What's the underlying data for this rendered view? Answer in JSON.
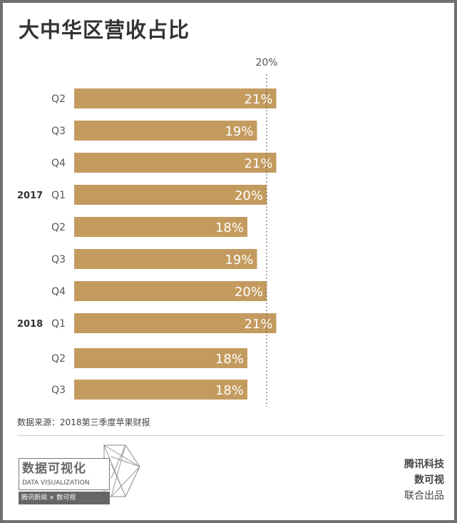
{
  "title": "大中华区营收占比",
  "source": "数据来源：2018第三季度苹果财报",
  "logo": {
    "cn": "数据可视化",
    "en": "DATA VISUALIZATION",
    "bar": "腾讯新闻 × 数可视"
  },
  "credits": {
    "line1": "腾讯科技",
    "line2": "数可视",
    "line3": "联合出品"
  },
  "watermark": "腾讯科技",
  "colors": {
    "bar": "#c49b5f",
    "text": "#333333"
  },
  "chart_data": {
    "type": "bar",
    "orientation": "horizontal",
    "title": "大中华区营收占比",
    "categories": [
      "Q2",
      "Q3",
      "Q4",
      "Q1",
      "Q2",
      "Q3",
      "Q4",
      "Q1",
      "Q2",
      "Q3"
    ],
    "year_labels": {
      "3": "2017",
      "7": "2018"
    },
    "values": [
      21,
      19,
      21,
      20,
      18,
      19,
      20,
      21,
      18,
      18
    ],
    "data_labels": [
      "21%",
      "19%",
      "21%",
      "20%",
      "18%",
      "19%",
      "20%",
      "21%",
      "18%",
      "18%"
    ],
    "reference_line": {
      "value": 20,
      "label": "20%",
      "style": "dotted"
    },
    "xlim": [
      0,
      21
    ]
  }
}
